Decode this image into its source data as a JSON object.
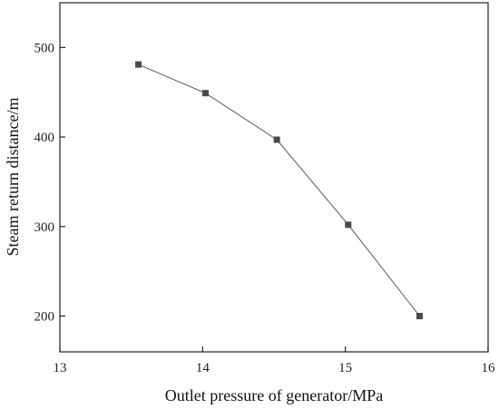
{
  "chart_data": {
    "type": "line",
    "title": "",
    "xlabel": "Outlet pressure of generator/MPa",
    "ylabel": "Steam return distance/m",
    "xlim": [
      13,
      16
    ],
    "ylim": [
      160,
      550
    ],
    "xticks": [
      13,
      14,
      15,
      16
    ],
    "yticks": [
      200,
      300,
      400,
      500
    ],
    "grid": false,
    "legend": "none",
    "series": [
      {
        "x": [
          13.55,
          14.02,
          14.52,
          15.02,
          15.52
        ],
        "y": [
          481,
          449,
          397,
          302,
          200
        ],
        "marker": "square",
        "marker_color": "#4a4a4a",
        "line_color": "#555555"
      }
    ]
  }
}
